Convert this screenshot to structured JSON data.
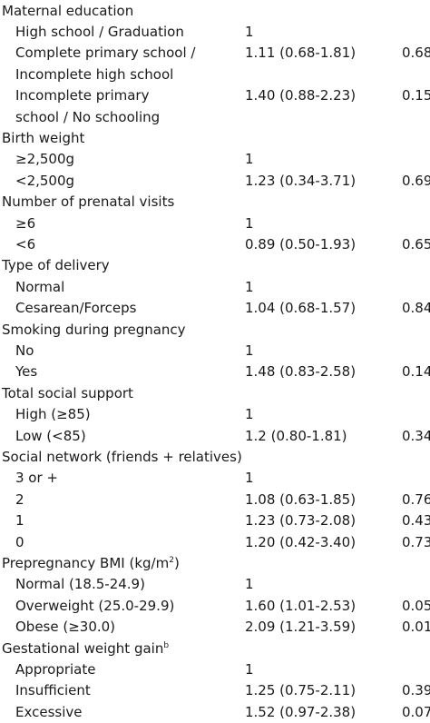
{
  "rows": [
    {
      "type": "header",
      "label": "Maternal education"
    },
    {
      "type": "item",
      "label": "High school / Graduation",
      "or": "1",
      "p": ""
    },
    {
      "type": "item",
      "label": "Complete primary school /",
      "or": "1.11 (0.68-1.81)",
      "p": "0.68"
    },
    {
      "type": "item",
      "label": "Incomplete high school",
      "or": "",
      "p": ""
    },
    {
      "type": "item",
      "label": "Incomplete primary",
      "or": "1.40 (0.88-2.23)",
      "p": "0.15"
    },
    {
      "type": "item",
      "label": "school / No schooling",
      "or": "",
      "p": ""
    },
    {
      "type": "header",
      "label": "Birth weight"
    },
    {
      "type": "item",
      "label": "≥2,500g",
      "or": "1",
      "p": ""
    },
    {
      "type": "item",
      "label": "<2,500g",
      "or": "1.23 (0.34-3.71)",
      "p": "0.69"
    },
    {
      "type": "header",
      "label": "Number of prenatal visits"
    },
    {
      "type": "item",
      "label": "≥6",
      "or": "1",
      "p": ""
    },
    {
      "type": "item",
      "label": "<6",
      "or": "0.89 (0.50-1.93)",
      "p": "0.65"
    },
    {
      "type": "header",
      "label": "Type of delivery"
    },
    {
      "type": "item",
      "label": "Normal",
      "or": "1",
      "p": ""
    },
    {
      "type": "item",
      "label": "Cesarean/Forceps",
      "or": "1.04 (0.68-1.57)",
      "p": "0.84"
    },
    {
      "type": "header",
      "label": "Smoking during pregnancy"
    },
    {
      "type": "item",
      "label": "No",
      "or": "1",
      "p": ""
    },
    {
      "type": "item",
      "label": "Yes",
      "or": "1.48 (0.83-2.58)",
      "p": "0.14"
    },
    {
      "type": "header",
      "label": "Total social support"
    },
    {
      "type": "item",
      "label": "High (≥85)",
      "or": "1",
      "p": ""
    },
    {
      "type": "item",
      "label": "Low (<85)",
      "or": "1.2 (0.80-1.81)",
      "p": "0.34"
    },
    {
      "type": "header",
      "label": "Social network (friends + relatives)"
    },
    {
      "type": "item",
      "label": "3 or +",
      "or": "1",
      "p": ""
    },
    {
      "type": "item",
      "label": "2",
      "or": "1.08 (0.63-1.85)",
      "p": "0.76"
    },
    {
      "type": "item",
      "label": "1",
      "or": "1.23 (0.73-2.08)",
      "p": "0.43"
    },
    {
      "type": "item",
      "label": "0",
      "or": "1.20 (0.42-3.40)",
      "p": "0.73"
    },
    {
      "type": "header",
      "label": "Prepregnancy BMI (kg/m",
      "sup": "2",
      "after": ")"
    },
    {
      "type": "item",
      "label": "Normal (18.5-24.9)",
      "or": "1",
      "p": ""
    },
    {
      "type": "item",
      "label": "Overweight (25.0-29.9)",
      "or": "1.60 (1.01-2.53)",
      "p": "0.05"
    },
    {
      "type": "item",
      "label": "Obese (≥30.0)",
      "or": "2.09 (1.21-3.59)",
      "p": "0.01"
    },
    {
      "type": "header",
      "label": "Gestational weight gain",
      "sup": "b",
      "after": ""
    },
    {
      "type": "item",
      "label": "Appropriate",
      "or": "1",
      "p": ""
    },
    {
      "type": "item",
      "label": "Insufficient",
      "or": "1.25 (0.75-2.11)",
      "p": "0.39"
    },
    {
      "type": "item",
      "label": "Excessive",
      "or": "1.52 (0.97-2.38)",
      "p": "0.07"
    }
  ]
}
